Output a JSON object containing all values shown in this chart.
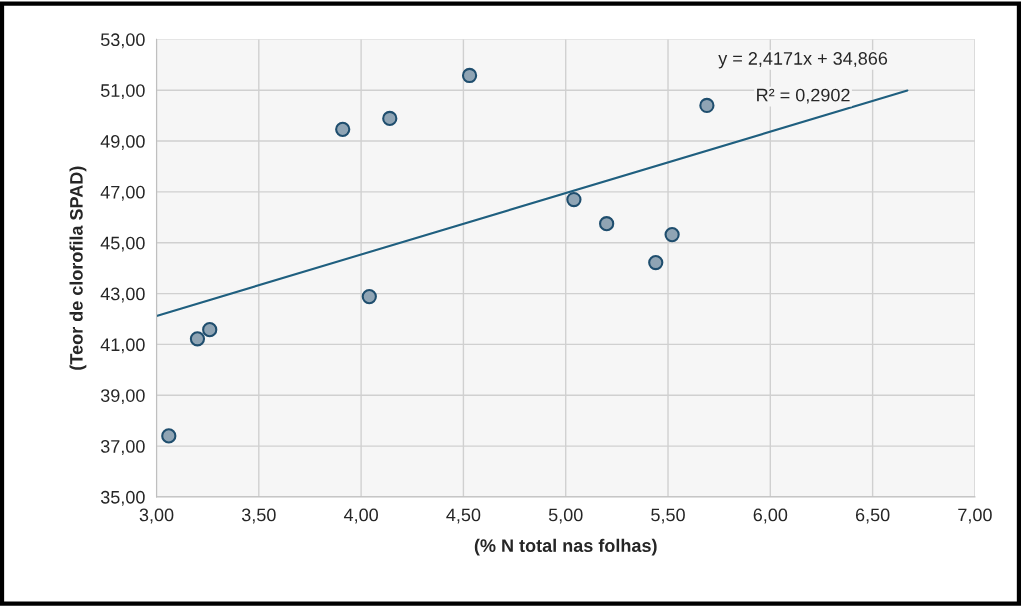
{
  "chart_data": {
    "type": "scatter",
    "xlabel": "(% N total nas folhas)",
    "ylabel": "(Teor de clorofila SPAD)",
    "series": [
      {
        "marker": "circle",
        "color": "#8fa4b4",
        "x": [
          3.06,
          3.2,
          3.26,
          4.04,
          3.91,
          4.14,
          4.53,
          5.04,
          5.2,
          5.44,
          5.52,
          5.69
        ],
        "values": [
          37.4,
          41.22,
          41.58,
          42.88,
          49.46,
          49.89,
          51.58,
          46.7,
          45.75,
          44.22,
          45.32,
          50.4
        ]
      },
      {
        "type": "line",
        "color": "#1f5f7f",
        "x": [
          3.0,
          6.67
        ],
        "values": [
          42.12,
          50.99
        ]
      }
    ],
    "xlim": [
      3.0,
      7.0
    ],
    "ylim": [
      35.0,
      53.0
    ],
    "xticks": [
      {
        "value": 3.0,
        "label": "3,00"
      },
      {
        "value": 3.5,
        "label": "3,50"
      },
      {
        "value": 4.0,
        "label": "4,00"
      },
      {
        "value": 4.5,
        "label": "4,50"
      },
      {
        "value": 5.0,
        "label": "5,00"
      },
      {
        "value": 5.5,
        "label": "5,50"
      },
      {
        "value": 6.0,
        "label": "6,00"
      },
      {
        "value": 6.5,
        "label": "6,50"
      },
      {
        "value": 7.0,
        "label": "7,00"
      }
    ],
    "yticks": [
      {
        "value": 35,
        "label": "35,00"
      },
      {
        "value": 37,
        "label": "37,00"
      },
      {
        "value": 39,
        "label": "39,00"
      },
      {
        "value": 41,
        "label": "41,00"
      },
      {
        "value": 43,
        "label": "43,00"
      },
      {
        "value": 45,
        "label": "45,00"
      },
      {
        "value": 47,
        "label": "47,00"
      },
      {
        "value": 49,
        "label": "49,00"
      },
      {
        "value": 51,
        "label": "51,00"
      },
      {
        "value": 53,
        "label": "53,00"
      }
    ],
    "grid": true,
    "annotations": [
      "y = 2,4171x + 34,866",
      "R² = 0,2902"
    ]
  }
}
